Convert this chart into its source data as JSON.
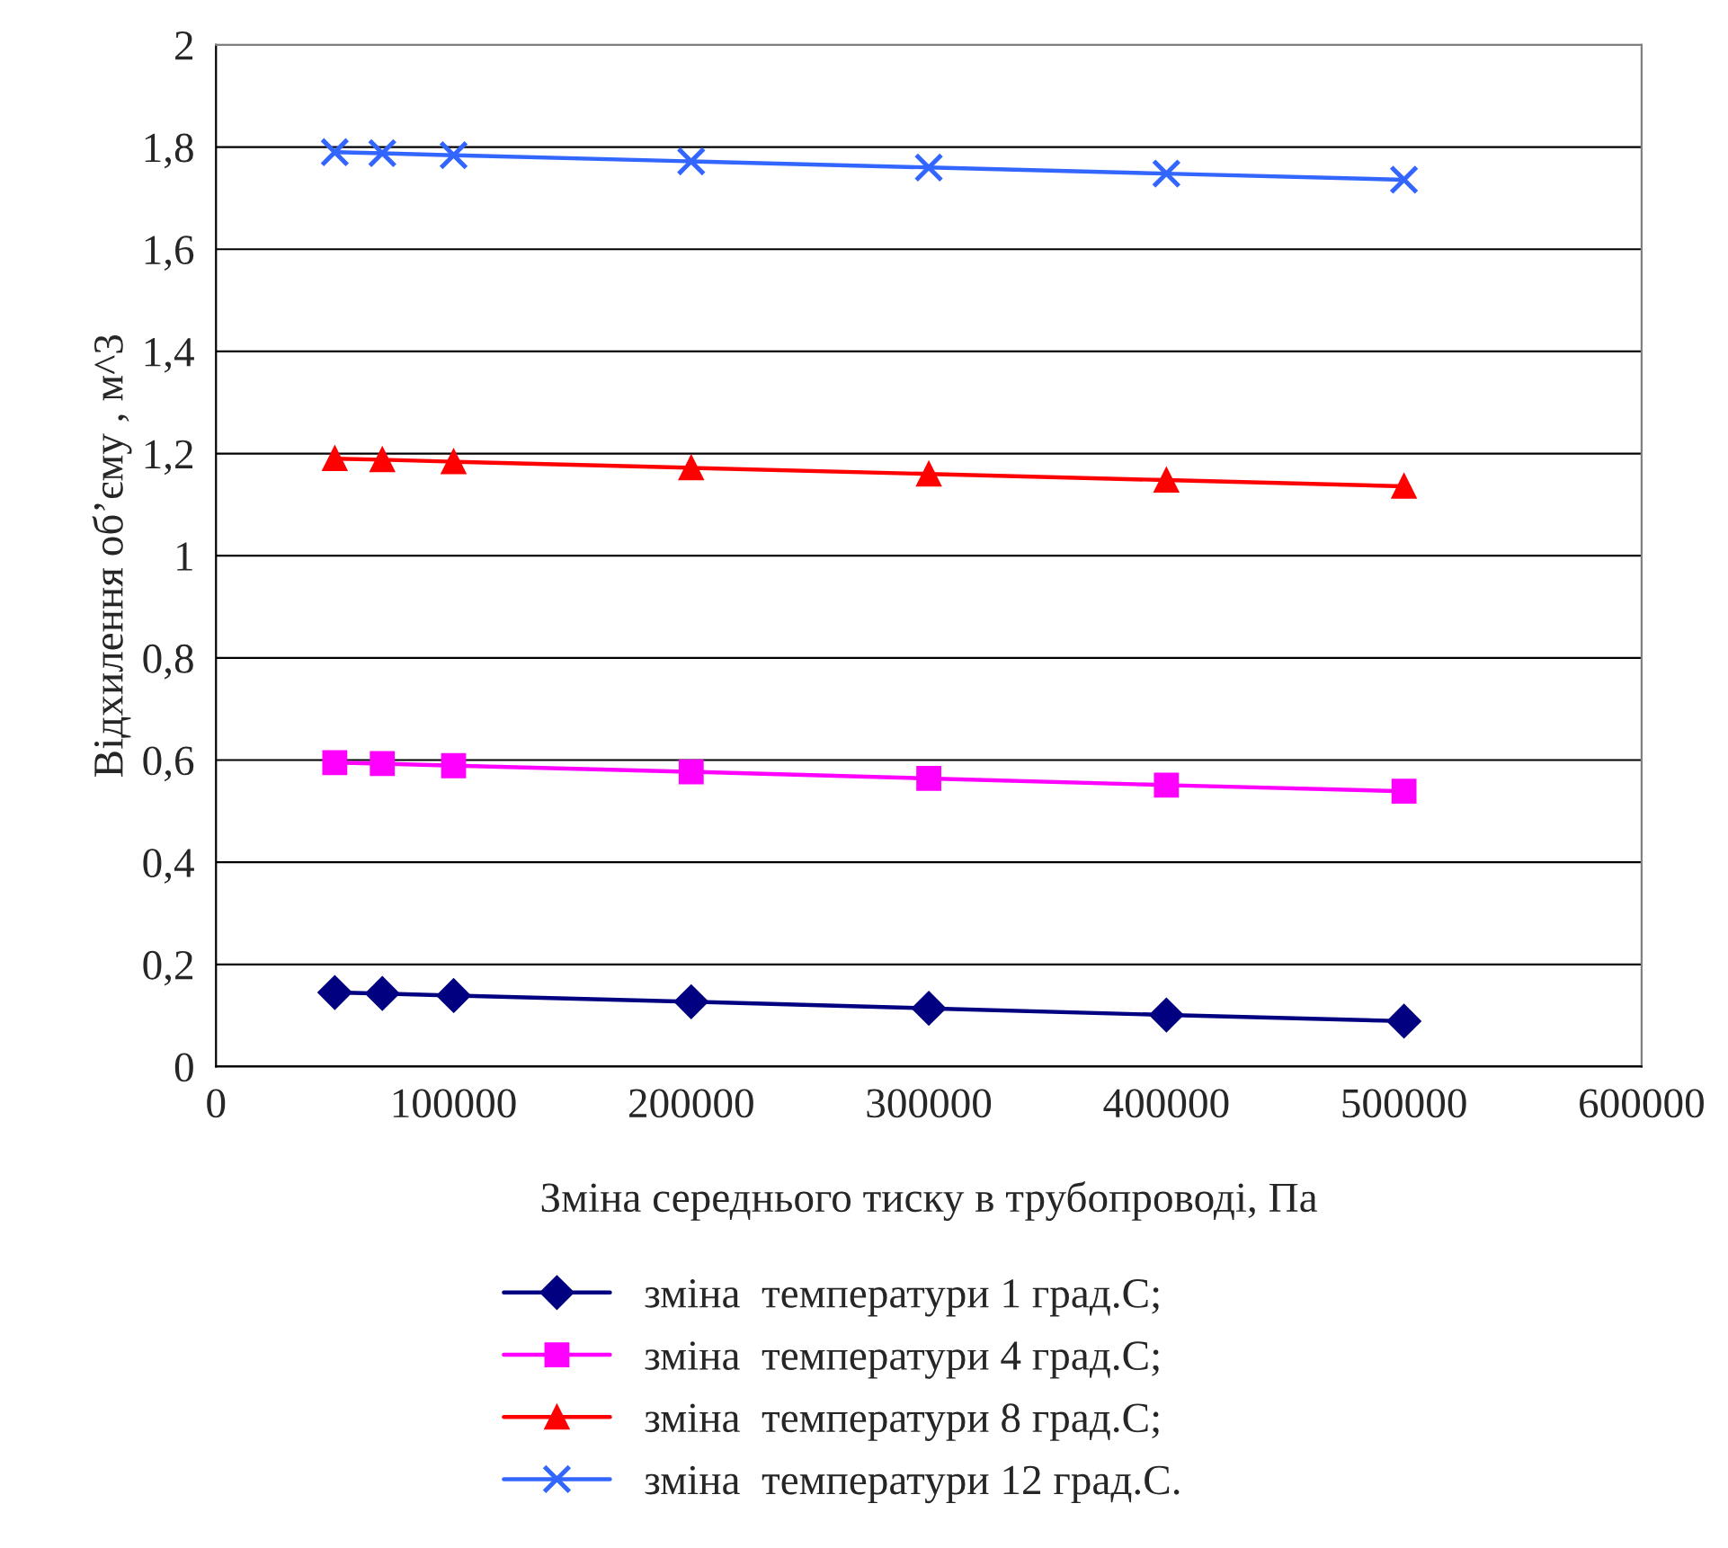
{
  "chart_data": {
    "type": "line",
    "xlabel": "Зміна середнього тиску в трубопроводі, Па",
    "ylabel": "Відхилення об’єму , м^3",
    "x": [
      50000,
      70000,
      100000,
      200000,
      300000,
      400000,
      500000
    ],
    "series": [
      {
        "name": "зміна  температури 1 град.С;",
        "color": "#000080",
        "marker": "diamond",
        "values": [
          0.145,
          0.143,
          0.139,
          0.127,
          0.114,
          0.101,
          0.089
        ]
      },
      {
        "name": "зміна  температури 4 град.С;",
        "color": "#ff00ff",
        "marker": "square",
        "values": [
          0.595,
          0.593,
          0.589,
          0.577,
          0.564,
          0.551,
          0.539
        ]
      },
      {
        "name": "зміна  температури 8 град.С;",
        "color": "#ff0000",
        "marker": "triangle",
        "values": [
          1.19,
          1.188,
          1.184,
          1.172,
          1.16,
          1.148,
          1.136
        ]
      },
      {
        "name": "зміна  температури 12 град.С.",
        "color": "#3366ff",
        "marker": "cross",
        "values": [
          1.79,
          1.788,
          1.784,
          1.772,
          1.76,
          1.748,
          1.736
        ]
      }
    ],
    "xlim": [
      0,
      600000
    ],
    "xticks": [
      0,
      100000,
      200000,
      300000,
      400000,
      500000,
      600000
    ],
    "ylim": [
      0,
      2
    ],
    "yticks": [
      0,
      {
        "value": 0.2,
        "label": "0,2"
      },
      {
        "value": 0.4,
        "label": "0,4"
      },
      {
        "value": 0.6,
        "label": "0,6"
      },
      {
        "value": 0.8,
        "label": "0,8"
      },
      1,
      {
        "value": 1.2,
        "label": "1,2"
      },
      {
        "value": 1.4,
        "label": "1,4"
      },
      {
        "value": 1.6,
        "label": "1,6"
      },
      {
        "value": 1.8,
        "label": "1,8"
      },
      2
    ],
    "grid": "y",
    "legend": "bottom",
    "line_style": "solid"
  }
}
